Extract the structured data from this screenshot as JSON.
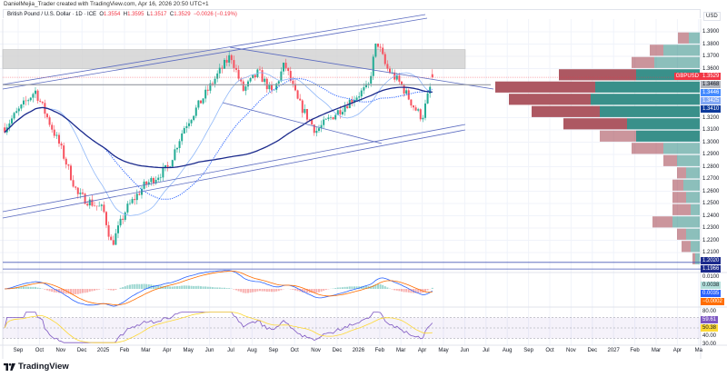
{
  "credit": "DanielMejia_Trader created with TradingView.com, Apr 16, 2026 20:50 UTC+1",
  "legend": {
    "symbol": "British Pound / U.S. Dollar · 1D · ICE",
    "o_label": "O",
    "o": "1.3554",
    "h_label": "H",
    "h": "1.3595",
    "l_label": "L",
    "l": "1.3517",
    "c_label": "C",
    "c": "1.3529",
    "change": "−0.0026 (−0.19%)"
  },
  "currency": "USD",
  "brand": "TradingView",
  "colors": {
    "up": "#22ab94",
    "down": "#f7525f",
    "sma_long": "#1b2a8c",
    "sma_mid": "#2962ff",
    "sma_short": "#90b8f8",
    "macd": "#2962ff",
    "signal": "#ff6d00",
    "rsi": "#7e57c2",
    "rsi_ma": "#fdd835",
    "zone": "#d6d6d6"
  },
  "price_axis": [
    "1.3900",
    "1.3800",
    "1.3700",
    "1.3600",
    "1.3200",
    "1.3100",
    "1.3000",
    "1.2900",
    "1.2800",
    "1.2700",
    "1.2600",
    "1.2500",
    "1.2400",
    "1.2300",
    "1.2200",
    "1.2100"
  ],
  "price_tags": [
    {
      "label": "GBPUSD",
      "value": "1.3529",
      "bg": "#f23645",
      "fg": "#ffffff"
    },
    {
      "value": "1.3468",
      "bg": "#b2b5be",
      "fg": "#131722"
    },
    {
      "value": "1.3446",
      "bg": "#448aff",
      "fg": "#ffffff"
    },
    {
      "value": "1.3425",
      "bg": "#82a8f5",
      "fg": "#ffffff"
    },
    {
      "value": "1.3410",
      "bg": "#0d3a9c",
      "fg": "#ffffff"
    },
    {
      "value": "1.2020",
      "bg": "#1b2a8c",
      "fg": "#ffffff"
    },
    {
      "value": "1.1966",
      "bg": "#1b2a8c",
      "fg": "#ffffff"
    }
  ],
  "macd_axis": {
    "ticks": [
      "0.0100"
    ],
    "tags": [
      {
        "value": "0.0038",
        "bg": "#b2dfdb",
        "fg": "#131722"
      },
      {
        "value": "0.0035",
        "bg": "#2962ff",
        "fg": "#ffffff"
      },
      {
        "value": "−0.0002",
        "bg": "#ff6d00",
        "fg": "#ffffff"
      }
    ]
  },
  "rsi_axis": {
    "ticks": [
      "80.00",
      "40.00",
      "30.00"
    ],
    "tags": [
      {
        "value": "59.61",
        "bg": "#7e57c2",
        "fg": "#ffffff"
      },
      {
        "value": "50.38",
        "bg": "#fdd835",
        "fg": "#131722"
      }
    ]
  },
  "time_axis": [
    "Sep",
    "Oct",
    "Nov",
    "Dec",
    "2025",
    "Feb",
    "Mar",
    "Apr",
    "May",
    "Jun",
    "Jul",
    "Aug",
    "Sep",
    "Oct",
    "Nov",
    "Dec",
    "2026",
    "Feb",
    "Mar",
    "Apr",
    "May",
    "Jun",
    "Jul",
    "Aug",
    "Sep",
    "Oct",
    "Nov",
    "Dec",
    "2027",
    "Feb",
    "Mar",
    "Apr",
    "Ma"
  ],
  "chart_data": {
    "type": "candlestick",
    "symbol": "GBPUSD",
    "interval": "1D",
    "ylim": [
      1.19,
      1.4
    ],
    "approx_closes": [
      [
        "2024-08-12",
        1.312
      ],
      [
        "2024-09-25",
        1.342
      ],
      [
        "2024-10-30",
        1.297
      ],
      [
        "2024-11-25",
        1.257
      ],
      [
        "2024-12-31",
        1.245
      ],
      [
        "2025-01-13",
        1.216
      ],
      [
        "2025-02-03",
        1.245
      ],
      [
        "2025-02-28",
        1.264
      ],
      [
        "2025-04-02",
        1.279
      ],
      [
        "2025-04-25",
        1.312
      ],
      [
        "2025-05-12",
        1.327
      ],
      [
        "2025-06-10",
        1.353
      ],
      [
        "2025-07-01",
        1.371
      ],
      [
        "2025-07-18",
        1.342
      ],
      [
        "2025-08-10",
        1.357
      ],
      [
        "2025-08-30",
        1.339
      ],
      [
        "2025-09-17",
        1.364
      ],
      [
        "2025-10-05",
        1.334
      ],
      [
        "2025-11-01",
        1.309
      ],
      [
        "2025-11-22",
        1.32
      ],
      [
        "2025-12-20",
        1.334
      ],
      [
        "2026-01-15",
        1.345
      ],
      [
        "2026-01-27",
        1.383
      ],
      [
        "2026-02-10",
        1.361
      ],
      [
        "2026-03-01",
        1.347
      ],
      [
        "2026-03-20",
        1.328
      ],
      [
        "2026-04-01",
        1.32
      ],
      [
        "2026-04-16",
        1.3529
      ]
    ],
    "resistance_zone": [
      1.36,
      1.3755
    ],
    "horizontal_levels": [
      1.3468,
      1.202,
      1.1966
    ],
    "volume_profile": [
      {
        "price": 1.385,
        "sell": 12,
        "buy": 12
      },
      {
        "price": 1.375,
        "sell": 15,
        "buy": 40
      },
      {
        "price": 1.365,
        "sell": 25,
        "buy": 50
      },
      {
        "price": 1.355,
        "sell": 85,
        "buy": 70
      },
      {
        "price": 1.345,
        "sell": 110,
        "buy": 115
      },
      {
        "price": 1.335,
        "sell": 90,
        "buy": 120
      },
      {
        "price": 1.325,
        "sell": 75,
        "buy": 110
      },
      {
        "price": 1.315,
        "sell": 70,
        "buy": 80
      },
      {
        "price": 1.305,
        "sell": 40,
        "buy": 70
      },
      {
        "price": 1.295,
        "sell": 35,
        "buy": 40
      },
      {
        "price": 1.285,
        "sell": 15,
        "buy": 25
      },
      {
        "price": 1.275,
        "sell": 10,
        "buy": 15
      },
      {
        "price": 1.265,
        "sell": 12,
        "buy": 18
      },
      {
        "price": 1.255,
        "sell": 15,
        "buy": 15
      },
      {
        "price": 1.245,
        "sell": 20,
        "buy": 10
      },
      {
        "price": 1.235,
        "sell": 22,
        "buy": 30
      },
      {
        "price": 1.225,
        "sell": 10,
        "buy": 15
      },
      {
        "price": 1.215,
        "sell": 10,
        "buy": 10
      },
      {
        "price": 1.205,
        "sell": 3,
        "buy": 5
      }
    ],
    "macd_ylim": [
      -0.015,
      0.015
    ],
    "rsi_ylim": [
      20,
      85
    ],
    "rsi_bands": [
      30,
      50,
      70
    ]
  }
}
